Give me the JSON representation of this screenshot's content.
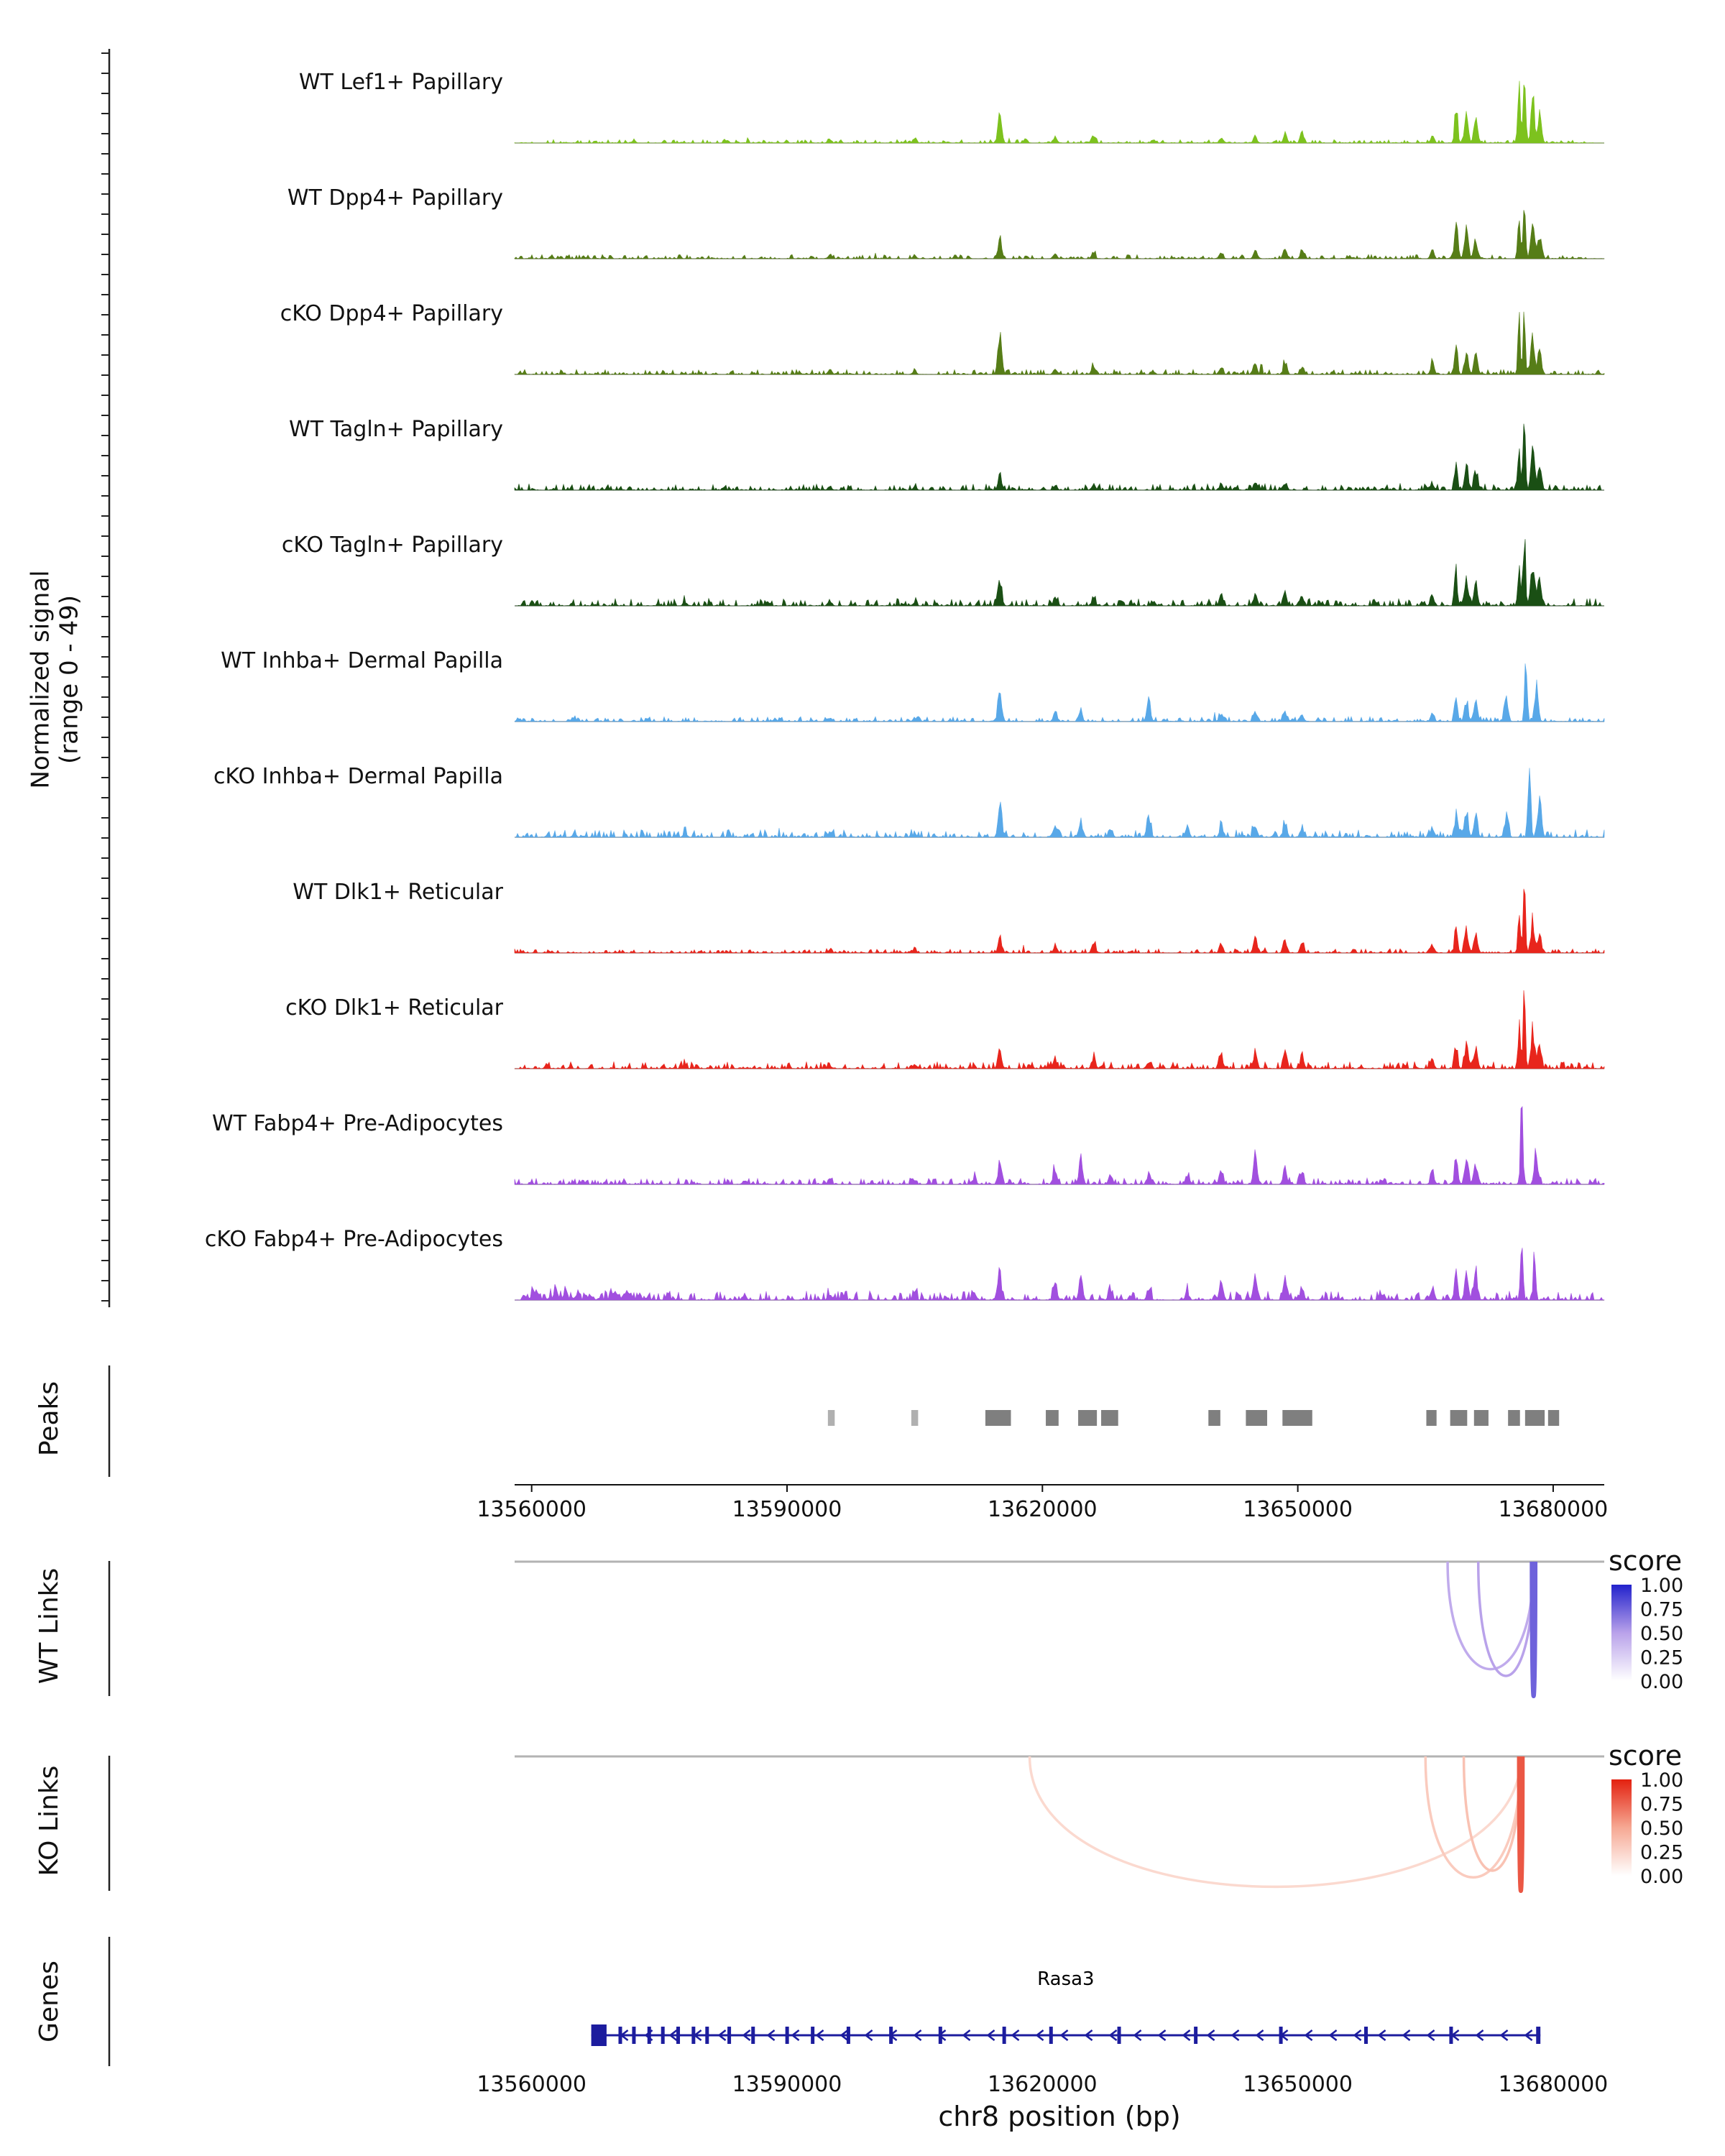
{
  "labels": {
    "signal_axis_line1": "Normalized signal",
    "signal_axis_line2": "(range 0 - 49)",
    "peaks": "Peaks",
    "wt_links": "WT Links",
    "ko_links": "KO Links",
    "genes": "Genes",
    "x_axis": "chr8 position (bp)",
    "score_legend": "score"
  },
  "chart_data": {
    "type": "area",
    "title": "",
    "genome_window": {
      "chrom": "chr8",
      "start": 13558000,
      "end": 13686000
    },
    "x_ticks": [
      13560000,
      13590000,
      13620000,
      13650000,
      13680000
    ],
    "x_tick_labels": [
      "13560000",
      "13590000",
      "13620000",
      "13650000",
      "13680000"
    ],
    "xlabel": "chr8 position (bp)",
    "ylabel": "Normalized signal (range 0 - 49)",
    "y_range": [
      0,
      49
    ],
    "score_ticks": [
      "1.00",
      "0.75",
      "0.50",
      "0.25",
      "0.00"
    ],
    "wt_colormap": [
      "#ffffff",
      "#b9a2ea",
      "#2222cc"
    ],
    "ko_colormap": [
      "#ffffff",
      "#f6a893",
      "#e3210f"
    ],
    "peak_color": "#7f7f7f",
    "peak_color_light": "#b0b0b0",
    "gene_color": "#1c1c9e",
    "tracks": [
      {
        "label": "WT Lef1+ Papillary",
        "color": "#7dc21e",
        "noise": 0.025,
        "peaks": [
          [
            13572000,
            0.03
          ],
          [
            13583000,
            0.03
          ],
          [
            13595000,
            0.06
          ],
          [
            13605000,
            0.05
          ],
          [
            13615000,
            0.38
          ],
          [
            13618000,
            0.05
          ],
          [
            13621500,
            0.08
          ],
          [
            13626000,
            0.1
          ],
          [
            13633000,
            0.04
          ],
          [
            13641000,
            0.06
          ],
          [
            13645000,
            0.09
          ],
          [
            13648500,
            0.12
          ],
          [
            13650500,
            0.1
          ],
          [
            13665800,
            0.1
          ],
          [
            13668600,
            0.52,
            300
          ],
          [
            13669800,
            0.4
          ],
          [
            13670900,
            0.3
          ],
          [
            13676000,
            0.7,
            260
          ],
          [
            13676600,
            0.95,
            240
          ],
          [
            13677600,
            0.55
          ],
          [
            13678400,
            0.35
          ]
        ]
      },
      {
        "label": "WT Dpp4+ Papillary",
        "color": "#567d17",
        "noise": 0.03,
        "peaks": [
          [
            13595000,
            0.05
          ],
          [
            13605000,
            0.04
          ],
          [
            13615000,
            0.28
          ],
          [
            13621500,
            0.07
          ],
          [
            13626000,
            0.08
          ],
          [
            13641000,
            0.07
          ],
          [
            13645000,
            0.1
          ],
          [
            13648500,
            0.11
          ],
          [
            13650500,
            0.09
          ],
          [
            13665800,
            0.09
          ],
          [
            13668600,
            0.48,
            300
          ],
          [
            13669800,
            0.36
          ],
          [
            13670900,
            0.28
          ],
          [
            13676000,
            0.65,
            260
          ],
          [
            13676600,
            0.9,
            240
          ],
          [
            13677600,
            0.52
          ],
          [
            13678400,
            0.3
          ]
        ]
      },
      {
        "label": "cKO Dpp4+ Papillary",
        "color": "#567d17",
        "noise": 0.035,
        "peaks": [
          [
            13595000,
            0.05
          ],
          [
            13605000,
            0.05
          ],
          [
            13615000,
            0.48
          ],
          [
            13621500,
            0.09
          ],
          [
            13626000,
            0.1
          ],
          [
            13633000,
            0.05
          ],
          [
            13641000,
            0.1
          ],
          [
            13645000,
            0.13
          ],
          [
            13648500,
            0.14
          ],
          [
            13650500,
            0.1
          ],
          [
            13665800,
            0.12
          ],
          [
            13668600,
            0.38,
            300
          ],
          [
            13669800,
            0.32
          ],
          [
            13670900,
            0.26
          ],
          [
            13676000,
            0.6,
            260
          ],
          [
            13676600,
            0.88,
            240
          ],
          [
            13677600,
            0.5
          ],
          [
            13678400,
            0.3
          ]
        ]
      },
      {
        "label": "WT Tagln+ Papillary",
        "color": "#1a4f14",
        "noise": 0.045,
        "peaks": [
          [
            13595000,
            0.05
          ],
          [
            13605000,
            0.04
          ],
          [
            13615000,
            0.16
          ],
          [
            13621500,
            0.06
          ],
          [
            13626000,
            0.07
          ],
          [
            13641000,
            0.07
          ],
          [
            13645000,
            0.09
          ],
          [
            13648500,
            0.1
          ],
          [
            13665800,
            0.08
          ],
          [
            13668600,
            0.3,
            300
          ],
          [
            13669800,
            0.26
          ],
          [
            13670900,
            0.22
          ],
          [
            13676000,
            0.55,
            260
          ],
          [
            13676600,
            1.0,
            240
          ],
          [
            13677600,
            0.5
          ],
          [
            13678400,
            0.28
          ]
        ]
      },
      {
        "label": "cKO Tagln+ Papillary",
        "color": "#1a4f14",
        "noise": 0.055,
        "peaks": [
          [
            13578000,
            0.05
          ],
          [
            13595000,
            0.06
          ],
          [
            13605000,
            0.05
          ],
          [
            13615000,
            0.3
          ],
          [
            13621500,
            0.1
          ],
          [
            13626000,
            0.11
          ],
          [
            13633000,
            0.06
          ],
          [
            13641000,
            0.13
          ],
          [
            13645000,
            0.15
          ],
          [
            13648500,
            0.15
          ],
          [
            13650500,
            0.12
          ],
          [
            13665800,
            0.12
          ],
          [
            13668600,
            0.36,
            300
          ],
          [
            13669800,
            0.3
          ],
          [
            13670900,
            0.28
          ],
          [
            13676000,
            0.6,
            260
          ],
          [
            13676600,
            0.95,
            240
          ],
          [
            13677600,
            0.62
          ],
          [
            13678400,
            0.35
          ]
        ]
      },
      {
        "label": "WT Inhba+ Dermal Papilla",
        "color": "#58a8e8",
        "noise": 0.035,
        "peaks": [
          [
            13565000,
            0.04
          ],
          [
            13595000,
            0.05
          ],
          [
            13605000,
            0.04
          ],
          [
            13615000,
            0.45
          ],
          [
            13621500,
            0.1
          ],
          [
            13624500,
            0.12
          ],
          [
            13632500,
            0.28
          ],
          [
            13641000,
            0.1
          ],
          [
            13645000,
            0.14
          ],
          [
            13648500,
            0.13
          ],
          [
            13650500,
            0.1
          ],
          [
            13665800,
            0.1
          ],
          [
            13668600,
            0.3,
            300
          ],
          [
            13669800,
            0.26
          ],
          [
            13670900,
            0.24
          ],
          [
            13674500,
            0.32
          ],
          [
            13676800,
            0.8,
            260
          ],
          [
            13678000,
            0.45
          ]
        ]
      },
      {
        "label": "cKO Inhba+ Dermal Papilla",
        "color": "#58a8e8",
        "noise": 0.055,
        "peaks": [
          [
            13565000,
            0.05
          ],
          [
            13578000,
            0.06
          ],
          [
            13595000,
            0.06
          ],
          [
            13605000,
            0.05
          ],
          [
            13615000,
            0.5
          ],
          [
            13621500,
            0.18
          ],
          [
            13624500,
            0.2
          ],
          [
            13628000,
            0.12
          ],
          [
            13632500,
            0.3
          ],
          [
            13637000,
            0.1
          ],
          [
            13641000,
            0.15
          ],
          [
            13645000,
            0.18
          ],
          [
            13648500,
            0.16
          ],
          [
            13650500,
            0.13
          ],
          [
            13665800,
            0.13
          ],
          [
            13668600,
            0.3,
            300
          ],
          [
            13669800,
            0.28
          ],
          [
            13670900,
            0.26
          ],
          [
            13674500,
            0.3
          ],
          [
            13677200,
            1.0,
            260
          ],
          [
            13678400,
            0.5
          ]
        ]
      },
      {
        "label": "WT Dlk1+ Reticular",
        "color": "#e8251c",
        "noise": 0.03,
        "peaks": [
          [
            13595000,
            0.04
          ],
          [
            13605000,
            0.04
          ],
          [
            13615000,
            0.18
          ],
          [
            13621500,
            0.1
          ],
          [
            13626000,
            0.12
          ],
          [
            13641000,
            0.1
          ],
          [
            13645000,
            0.22
          ],
          [
            13648500,
            0.16
          ],
          [
            13650500,
            0.12
          ],
          [
            13665800,
            0.1
          ],
          [
            13668600,
            0.35,
            300
          ],
          [
            13669800,
            0.28
          ],
          [
            13670900,
            0.24
          ],
          [
            13676000,
            0.5,
            260
          ],
          [
            13676600,
            0.8,
            240
          ],
          [
            13677600,
            0.42
          ],
          [
            13678400,
            0.25
          ]
        ]
      },
      {
        "label": "cKO Dlk1+ Reticular",
        "color": "#e8251c",
        "noise": 0.05,
        "peaks": [
          [
            13578000,
            0.05
          ],
          [
            13595000,
            0.05
          ],
          [
            13605000,
            0.05
          ],
          [
            13615000,
            0.24
          ],
          [
            13621500,
            0.14
          ],
          [
            13626000,
            0.15
          ],
          [
            13632500,
            0.1
          ],
          [
            13641000,
            0.17
          ],
          [
            13645000,
            0.2
          ],
          [
            13648500,
            0.17
          ],
          [
            13650500,
            0.14
          ],
          [
            13665800,
            0.12
          ],
          [
            13668600,
            0.32,
            300
          ],
          [
            13669800,
            0.28
          ],
          [
            13670900,
            0.28
          ],
          [
            13676000,
            0.55,
            260
          ],
          [
            13676600,
            0.85,
            240
          ],
          [
            13677600,
            0.55
          ],
          [
            13678400,
            0.3
          ]
        ]
      },
      {
        "label": "WT Fabp4+ Pre-Adipocytes",
        "color": "#a14fdf",
        "noise": 0.045,
        "peaks": [
          [
            13566000,
            0.05
          ],
          [
            13585000,
            0.05
          ],
          [
            13595000,
            0.06
          ],
          [
            13605000,
            0.05
          ],
          [
            13612000,
            0.08
          ],
          [
            13615000,
            0.28
          ],
          [
            13621500,
            0.2
          ],
          [
            13624500,
            0.3
          ],
          [
            13628000,
            0.12
          ],
          [
            13632500,
            0.14
          ],
          [
            13637000,
            0.1
          ],
          [
            13641000,
            0.18
          ],
          [
            13645000,
            0.32
          ],
          [
            13648500,
            0.22
          ],
          [
            13650500,
            0.15
          ],
          [
            13660000,
            0.06
          ],
          [
            13665800,
            0.15
          ],
          [
            13668600,
            0.3,
            300
          ],
          [
            13669800,
            0.3
          ],
          [
            13670900,
            0.28
          ],
          [
            13676300,
            1.0,
            240
          ],
          [
            13678000,
            0.38
          ]
        ]
      },
      {
        "label": "cKO Fabp4+ Pre-Adipocytes",
        "color": "#a14fdf",
        "noise": 0.065,
        "extra": [
          [
            13559000,
            13574000,
            0.1
          ]
        ],
        "peaks": [
          [
            13576000,
            0.07
          ],
          [
            13585000,
            0.07
          ],
          [
            13595000,
            0.08
          ],
          [
            13605000,
            0.07
          ],
          [
            13612000,
            0.1
          ],
          [
            13615000,
            0.3
          ],
          [
            13621500,
            0.22
          ],
          [
            13624500,
            0.28
          ],
          [
            13628000,
            0.14
          ],
          [
            13632500,
            0.16
          ],
          [
            13637000,
            0.12
          ],
          [
            13641000,
            0.25
          ],
          [
            13645000,
            0.3
          ],
          [
            13648500,
            0.25
          ],
          [
            13650500,
            0.18
          ],
          [
            13660000,
            0.08
          ],
          [
            13665800,
            0.18
          ],
          [
            13668600,
            0.35,
            300
          ],
          [
            13669800,
            0.34
          ],
          [
            13670900,
            0.32
          ],
          [
            13676300,
            0.88,
            240
          ],
          [
            13677800,
            0.72,
            240
          ]
        ]
      }
    ],
    "peak_regions": [
      [
        13594800,
        13595600,
        "light"
      ],
      [
        13604600,
        13605400,
        "light"
      ],
      [
        13613300,
        13616300
      ],
      [
        13620400,
        13621900
      ],
      [
        13624200,
        13626400
      ],
      [
        13626900,
        13628900
      ],
      [
        13639500,
        13640900
      ],
      [
        13643900,
        13646400
      ],
      [
        13648200,
        13651700
      ],
      [
        13665100,
        13666300
      ],
      [
        13667900,
        13669900
      ],
      [
        13670700,
        13672400
      ],
      [
        13674700,
        13676100
      ],
      [
        13676700,
        13679000
      ],
      [
        13679400,
        13680700
      ]
    ],
    "wt_links": [
      {
        "from": 13667600,
        "to": 13677700,
        "score": 0.45,
        "depth": 0.8
      },
      {
        "from": 13671200,
        "to": 13677700,
        "score": 0.5,
        "depth": 0.85
      },
      {
        "from": 13677500,
        "to": 13677900,
        "score": 0.75,
        "depth": 1.0
      }
    ],
    "ko_links": [
      {
        "from": 13618500,
        "to": 13676200,
        "score": 0.22,
        "depth": 0.97
      },
      {
        "from": 13665000,
        "to": 13676200,
        "score": 0.3,
        "depth": 0.9
      },
      {
        "from": 13669500,
        "to": 13676200,
        "score": 0.35,
        "depth": 0.85
      },
      {
        "from": 13676000,
        "to": 13676400,
        "score": 0.8,
        "depth": 1.0
      }
    ],
    "gene": {
      "name": "Rasa3",
      "strand": "-",
      "start": 13567000,
      "end": 13678500,
      "exons": [
        [
          13567000,
          13568800
        ],
        [
          13570200,
          13570600
        ],
        [
          13571800,
          13572200
        ],
        [
          13573600,
          13574000
        ],
        [
          13575200,
          13575600
        ],
        [
          13577000,
          13577400
        ],
        [
          13578800,
          13579200
        ],
        [
          13580400,
          13580800
        ],
        [
          13583000,
          13583400
        ],
        [
          13585800,
          13586200
        ],
        [
          13589800,
          13590200
        ],
        [
          13592800,
          13593200
        ],
        [
          13597000,
          13597400
        ],
        [
          13602000,
          13602400
        ],
        [
          13607800,
          13608200
        ],
        [
          13615300,
          13615700
        ],
        [
          13620800,
          13621200
        ],
        [
          13628800,
          13629200
        ],
        [
          13637800,
          13638200
        ],
        [
          13647800,
          13648200
        ],
        [
          13657800,
          13658200
        ],
        [
          13667800,
          13668200
        ],
        [
          13678000,
          13678500
        ]
      ]
    }
  }
}
